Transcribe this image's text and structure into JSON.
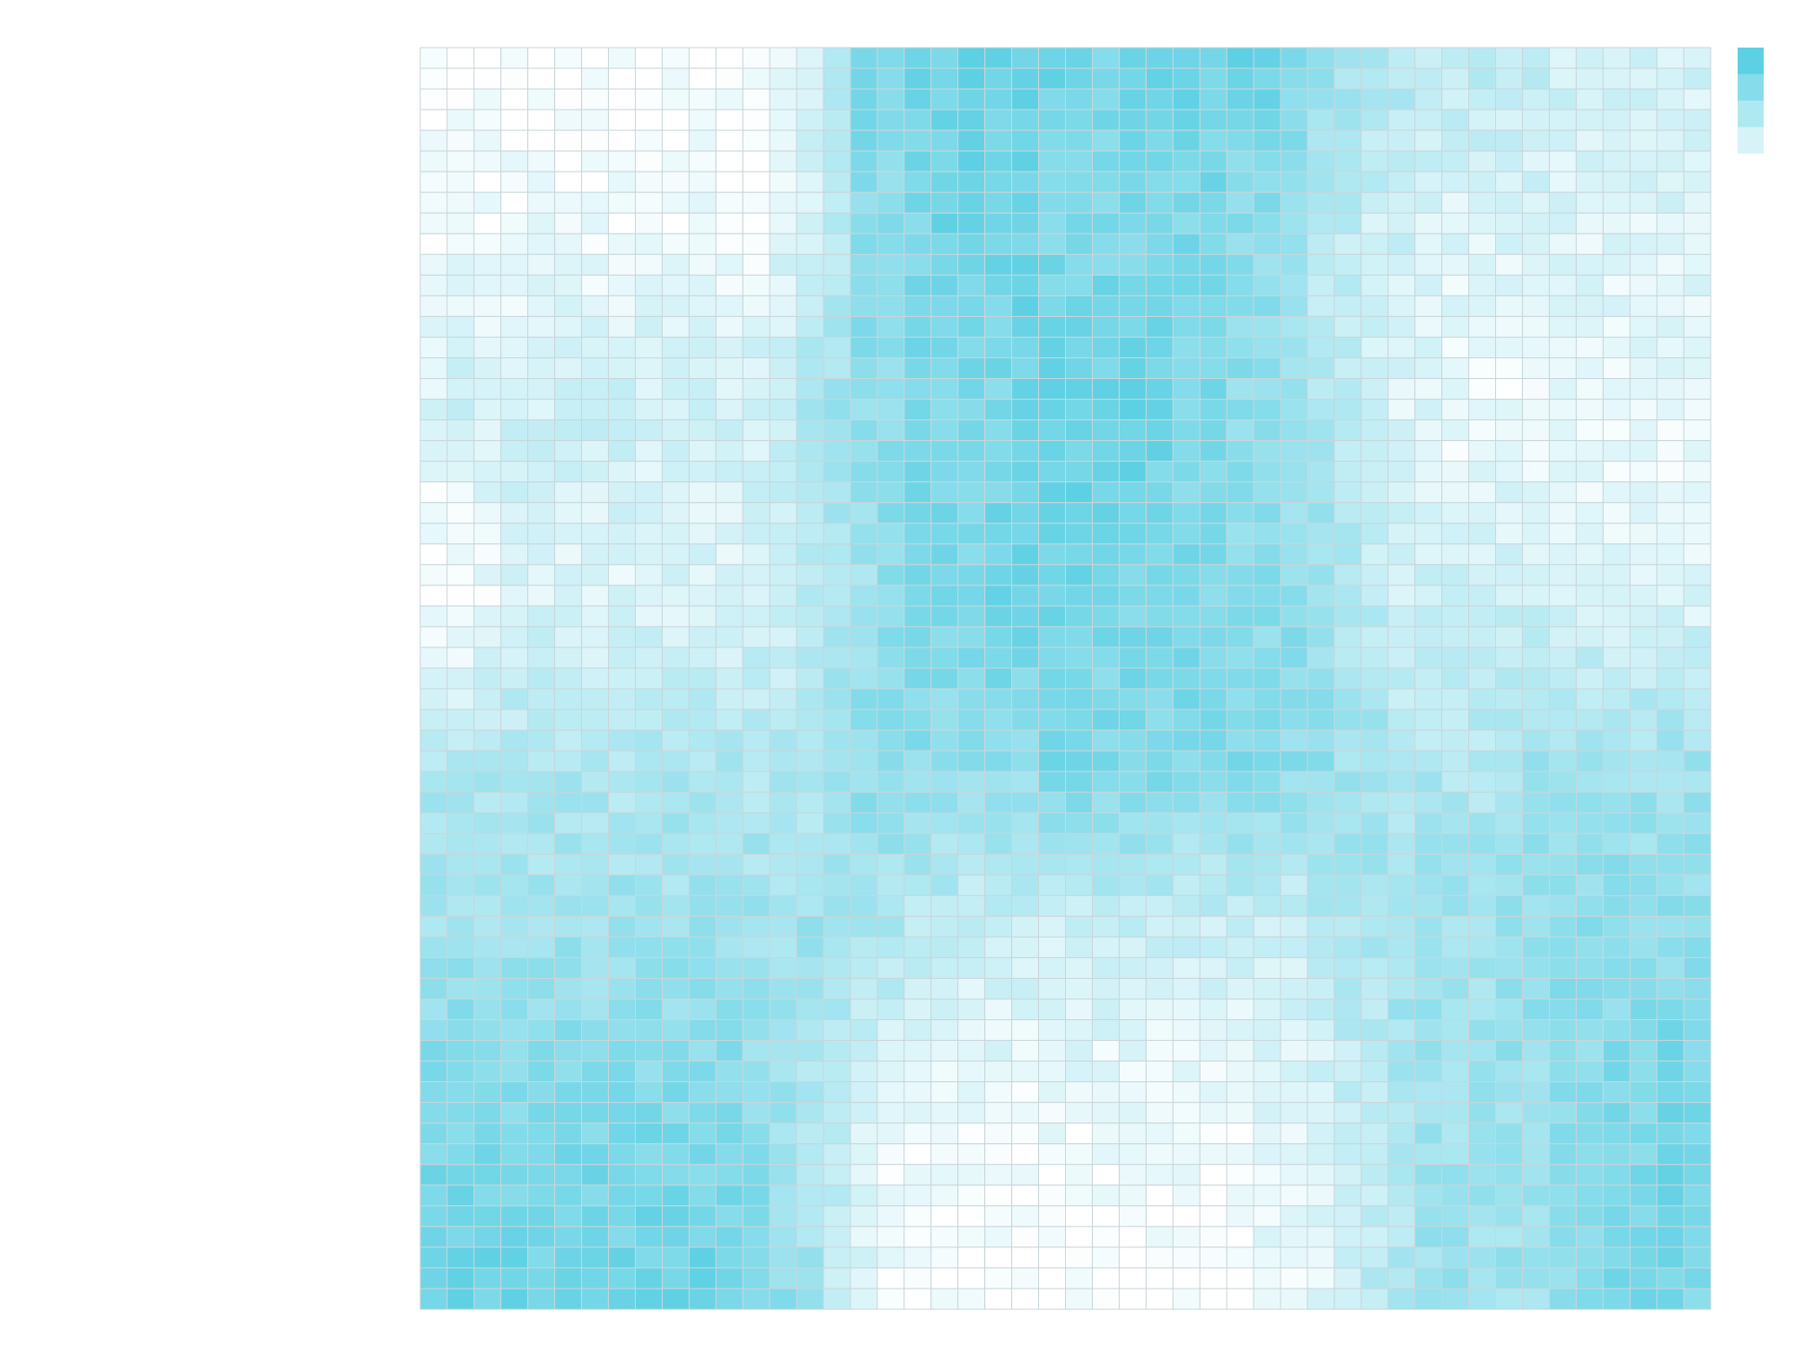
{
  "chart_data": {
    "type": "heatmap",
    "rows": 61,
    "cols": 48,
    "value_range": [
      0,
      1
    ],
    "colorscale": {
      "low": "#ffffff",
      "high": "#5dd0e3"
    },
    "legend": {
      "placement": "top-right",
      "swatches": [
        1.0,
        0.75,
        0.5,
        0.25
      ]
    },
    "grid": true,
    "row_pattern": [
      [
        0.0,
        0.0,
        0.0,
        0.0,
        0.0,
        0.0,
        0.0,
        0.0,
        0.0,
        0.0,
        0.0,
        0.0,
        0.0,
        0.1,
        0.3,
        0.5,
        0.8,
        0.8,
        0.9,
        0.9,
        1.0,
        0.9,
        0.9,
        0.9,
        0.9,
        0.8,
        0.9,
        0.9,
        0.9,
        0.9,
        0.9,
        0.9,
        0.8,
        0.7,
        0.6,
        0.5,
        0.5,
        0.4,
        0.4,
        0.4,
        0.4,
        0.4,
        0.3,
        0.3,
        0.3,
        0.3,
        0.3,
        0.3
      ],
      [
        0.1,
        0.1,
        0.1,
        0.1,
        0.1,
        0.1,
        0.1,
        0.1,
        0.1,
        0.1,
        0.1,
        0.1,
        0.1,
        0.2,
        0.3,
        0.4,
        0.7,
        0.7,
        0.8,
        0.9,
        0.9,
        0.9,
        0.9,
        0.8,
        0.8,
        0.8,
        0.8,
        0.8,
        0.8,
        0.8,
        0.7,
        0.7,
        0.6,
        0.4,
        0.4,
        0.3,
        0.3,
        0.2,
        0.2,
        0.2,
        0.2,
        0.2,
        0.2,
        0.2,
        0.2,
        0.2,
        0.2,
        0.2
      ],
      [
        0.2,
        0.3,
        0.3,
        0.3,
        0.3,
        0.3,
        0.3,
        0.3,
        0.3,
        0.3,
        0.3,
        0.3,
        0.3,
        0.4,
        0.5,
        0.6,
        0.7,
        0.7,
        0.8,
        0.8,
        0.8,
        0.8,
        0.9,
        0.9,
        0.9,
        0.9,
        1.0,
        0.9,
        0.8,
        0.8,
        0.7,
        0.7,
        0.6,
        0.5,
        0.4,
        0.3,
        0.2,
        0.2,
        0.1,
        0.1,
        0.1,
        0.1,
        0.1,
        0.1,
        0.1,
        0.1,
        0.1,
        0.1
      ],
      [
        0.0,
        0.0,
        0.1,
        0.2,
        0.2,
        0.2,
        0.2,
        0.2,
        0.2,
        0.2,
        0.2,
        0.2,
        0.3,
        0.3,
        0.4,
        0.5,
        0.6,
        0.7,
        0.8,
        0.8,
        0.8,
        0.9,
        0.9,
        0.9,
        0.9,
        0.8,
        0.8,
        0.8,
        0.8,
        0.8,
        0.7,
        0.7,
        0.7,
        0.6,
        0.5,
        0.4,
        0.3,
        0.3,
        0.3,
        0.3,
        0.3,
        0.3,
        0.2,
        0.2,
        0.2,
        0.2,
        0.2,
        0.2
      ],
      [
        0.5,
        0.5,
        0.5,
        0.5,
        0.5,
        0.5,
        0.5,
        0.5,
        0.5,
        0.5,
        0.5,
        0.5,
        0.5,
        0.5,
        0.5,
        0.6,
        0.7,
        0.7,
        0.7,
        0.7,
        0.7,
        0.7,
        0.7,
        0.8,
        0.8,
        0.8,
        0.8,
        0.8,
        0.8,
        0.8,
        0.8,
        0.8,
        0.7,
        0.7,
        0.6,
        0.6,
        0.5,
        0.5,
        0.5,
        0.5,
        0.5,
        0.6,
        0.6,
        0.6,
        0.6,
        0.6,
        0.6,
        0.6
      ],
      [
        0.6,
        0.6,
        0.6,
        0.6,
        0.6,
        0.6,
        0.6,
        0.6,
        0.6,
        0.6,
        0.6,
        0.6,
        0.6,
        0.6,
        0.6,
        0.6,
        0.5,
        0.5,
        0.4,
        0.4,
        0.3,
        0.3,
        0.3,
        0.3,
        0.3,
        0.3,
        0.3,
        0.3,
        0.3,
        0.3,
        0.3,
        0.3,
        0.3,
        0.4,
        0.5,
        0.5,
        0.6,
        0.6,
        0.6,
        0.6,
        0.7,
        0.7,
        0.7,
        0.7,
        0.7,
        0.7,
        0.7,
        0.7
      ],
      [
        0.8,
        0.8,
        0.8,
        0.8,
        0.8,
        0.8,
        0.8,
        0.8,
        0.8,
        0.8,
        0.8,
        0.8,
        0.7,
        0.6,
        0.5,
        0.4,
        0.2,
        0.1,
        0.1,
        0.1,
        0.1,
        0.1,
        0.1,
        0.1,
        0.1,
        0.1,
        0.1,
        0.1,
        0.1,
        0.1,
        0.1,
        0.2,
        0.2,
        0.2,
        0.3,
        0.4,
        0.5,
        0.6,
        0.6,
        0.6,
        0.6,
        0.6,
        0.7,
        0.7,
        0.8,
        0.8,
        0.9,
        0.9
      ],
      [
        0.9,
        0.9,
        0.9,
        0.9,
        0.9,
        0.9,
        0.9,
        0.9,
        0.9,
        0.9,
        0.9,
        0.8,
        0.8,
        0.7,
        0.6,
        0.4,
        0.2,
        0.1,
        0.0,
        0.0,
        0.0,
        0.0,
        0.0,
        0.0,
        0.0,
        0.0,
        0.0,
        0.0,
        0.0,
        0.0,
        0.0,
        0.1,
        0.1,
        0.2,
        0.3,
        0.4,
        0.5,
        0.6,
        0.6,
        0.6,
        0.6,
        0.6,
        0.7,
        0.7,
        0.8,
        0.8,
        0.8,
        0.8
      ]
    ]
  }
}
